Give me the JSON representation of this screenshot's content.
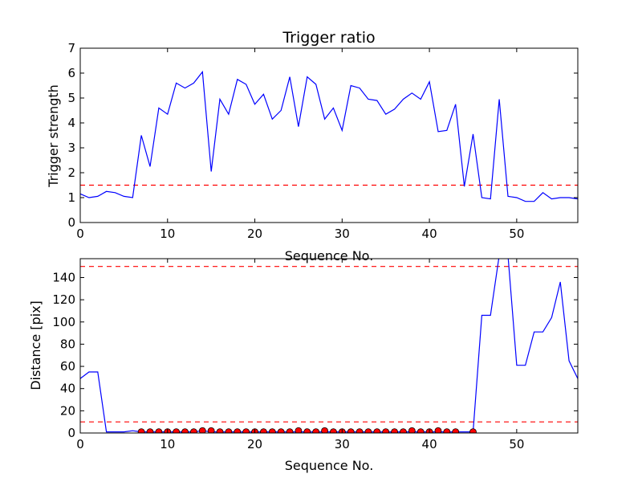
{
  "colors": {
    "series_line": "#0000ff",
    "threshold": "#ff0000",
    "marker_fill": "#ff0000",
    "marker_edge": "#000000",
    "axes": "#000000"
  },
  "chart_data": [
    {
      "type": "line",
      "title": "Trigger ratio",
      "xlabel": "Sequence No.",
      "ylabel": "Trigger strength",
      "xlim": [
        0,
        57
      ],
      "ylim": [
        0,
        7
      ],
      "xticks": [
        "0",
        "10",
        "20",
        "30",
        "40",
        "50"
      ],
      "yticks": [
        "0",
        "1",
        "2",
        "3",
        "4",
        "5",
        "6",
        "7"
      ],
      "x": [
        0,
        1,
        2,
        3,
        4,
        5,
        6,
        7,
        8,
        9,
        10,
        11,
        12,
        13,
        14,
        15,
        16,
        17,
        18,
        19,
        20,
        21,
        22,
        23,
        24,
        25,
        26,
        27,
        28,
        29,
        30,
        31,
        32,
        33,
        34,
        35,
        36,
        37,
        38,
        39,
        40,
        41,
        42,
        43,
        44,
        45,
        46,
        47,
        48,
        49,
        50,
        51,
        52,
        53,
        54,
        55,
        56,
        57
      ],
      "series": [
        {
          "values": [
            1.15,
            1.0,
            1.05,
            1.25,
            1.2,
            1.05,
            1.0,
            3.5,
            2.25,
            4.6,
            4.35,
            5.6,
            5.4,
            5.6,
            6.05,
            2.05,
            4.95,
            4.35,
            5.75,
            5.55,
            4.75,
            5.15,
            4.15,
            4.5,
            5.85,
            3.85,
            5.85,
            5.55,
            4.15,
            4.6,
            3.7,
            5.5,
            5.4,
            4.95,
            4.9,
            4.35,
            4.55,
            4.95,
            5.2,
            4.95,
            5.65,
            3.65,
            3.7,
            4.75,
            1.45,
            3.55,
            1.0,
            0.95,
            4.95,
            1.05,
            1.0,
            0.85,
            0.85,
            1.2,
            0.95,
            1.0,
            1.0,
            0.95
          ]
        }
      ],
      "hlines": [
        1.5
      ],
      "grid": false
    },
    {
      "type": "line",
      "title": "",
      "xlabel": "Sequence No.",
      "ylabel": "Distance [pix]",
      "xlim": [
        0,
        57
      ],
      "ylim": [
        0,
        157
      ],
      "xticks": [
        "0",
        "10",
        "20",
        "30",
        "40",
        "50"
      ],
      "yticks": [
        "0",
        "20",
        "40",
        "60",
        "80",
        "100",
        "120",
        "140"
      ],
      "x": [
        0,
        1,
        2,
        3,
        4,
        5,
        6,
        7,
        8,
        9,
        10,
        11,
        12,
        13,
        14,
        15,
        16,
        17,
        18,
        19,
        20,
        21,
        22,
        23,
        24,
        25,
        26,
        27,
        28,
        29,
        30,
        31,
        32,
        33,
        34,
        35,
        36,
        37,
        38,
        39,
        40,
        41,
        42,
        43,
        44,
        45,
        46,
        47,
        48,
        49,
        50,
        51,
        52,
        53,
        54,
        55,
        56,
        57
      ],
      "series": [
        {
          "values": [
            49,
            55,
            55,
            1,
            1,
            1,
            2,
            1,
            1,
            1,
            1,
            1,
            1,
            1,
            2,
            1,
            1,
            1,
            1,
            1,
            1,
            1,
            1,
            1,
            1,
            1,
            1,
            1,
            1,
            1,
            1,
            1,
            1,
            1,
            1,
            1,
            1,
            1,
            1,
            1,
            1,
            1,
            1,
            1,
            1,
            1,
            106,
            106,
            160,
            160,
            61,
            61,
            91,
            91,
            104,
            136,
            65,
            49
          ]
        }
      ],
      "markers": {
        "x": [
          7,
          8,
          9,
          10,
          11,
          12,
          13,
          14,
          15,
          16,
          17,
          18,
          19,
          20,
          21,
          22,
          23,
          24,
          25,
          26,
          27,
          28,
          29,
          30,
          31,
          32,
          33,
          34,
          35,
          36,
          37,
          38,
          39,
          40,
          41,
          42,
          43,
          45
        ],
        "y": [
          1,
          1,
          1,
          1,
          1,
          1,
          1,
          2,
          2,
          1,
          1,
          1,
          1,
          1,
          1,
          1,
          1,
          1,
          2,
          1,
          1,
          2,
          1,
          1,
          1,
          1,
          1,
          1,
          1,
          1,
          1,
          2,
          1,
          1,
          2,
          1,
          1,
          1
        ]
      },
      "hlines": [
        10,
        150
      ],
      "grid": false
    }
  ]
}
